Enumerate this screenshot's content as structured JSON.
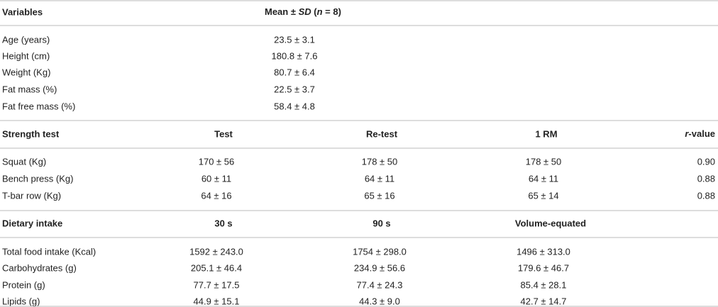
{
  "sections": [
    {
      "header": [
        "Variables",
        [
          {
            "text": "Mean ± "
          },
          {
            "text": "SD",
            "style": "italic"
          },
          {
            "text": " ("
          },
          {
            "text": "n",
            "style": "italic"
          },
          {
            "text": " = 8)"
          }
        ]
      ],
      "rows": [
        [
          "Age (years)",
          "23.5 ± 3.1"
        ],
        [
          "Height (cm)",
          "180.8 ± 7.6"
        ],
        [
          "Weight (Kg)",
          "80.7 ± 6.4"
        ],
        [
          "Fat mass (%)",
          "22.5 ± 3.7"
        ],
        [
          "Fat free mass (%)",
          "58.4 ± 4.8"
        ]
      ]
    },
    {
      "header": [
        "Strength test",
        "Test",
        "Re-test",
        "1 RM",
        [
          {
            "text": "r",
            "style": "italic"
          },
          {
            "text": "-value"
          }
        ]
      ],
      "rows": [
        [
          "Squat (Kg)",
          "170 ± 56",
          "178 ± 50",
          "178 ± 50",
          "0.90"
        ],
        [
          "Bench press (Kg)",
          "60 ± 11",
          "64 ± 11",
          "64 ± 11",
          "0.88"
        ],
        [
          "T-bar row (Kg)",
          "64 ± 16",
          "65 ± 16",
          "65 ± 14",
          "0.88"
        ]
      ]
    },
    {
      "header": [
        "Dietary intake",
        "30 s",
        "90 s",
        "Volume-equated"
      ],
      "rows": [
        [
          "Total food intake (Kcal)",
          "1592 ± 243.0",
          "1754 ± 298.0",
          "1496 ± 313.0"
        ],
        [
          "Carbohydrates (g)",
          "205.1 ± 46.4",
          "234.9 ± 56.6",
          "179.6 ± 46.7"
        ],
        [
          "Protein (g)",
          "77.7 ± 17.5",
          "77.4 ± 24.3",
          "85.4 ± 28.1"
        ],
        [
          "Lipids (g)",
          "44.9 ± 15.1",
          "44.3 ± 9.0",
          "42.7 ± 14.7"
        ]
      ]
    }
  ]
}
